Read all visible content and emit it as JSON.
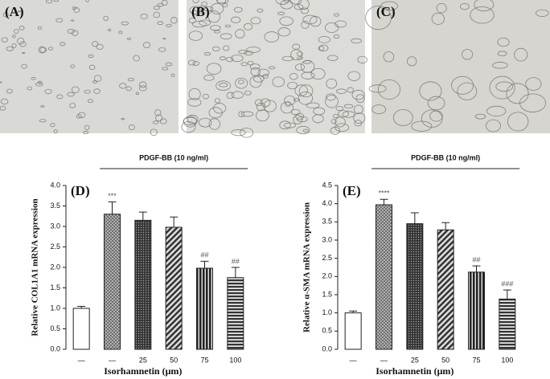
{
  "panels": [
    {
      "label": "(A)"
    },
    {
      "label": "(B)"
    },
    {
      "label": "(C)"
    }
  ],
  "chart_data": [
    {
      "type": "bar",
      "panel_label": "(D)",
      "ylabel": "Relative COL1A1 mRNA expression",
      "xlabel": "Isorhamnetin (μm)",
      "group_label": "PDGF-BB (10 ng/ml)",
      "categories": [
        "—",
        "—",
        "25",
        "50",
        "75",
        "100"
      ],
      "values": [
        1.0,
        3.3,
        3.15,
        2.98,
        1.98,
        1.75
      ],
      "errors": [
        0.05,
        0.3,
        0.2,
        0.25,
        0.17,
        0.25
      ],
      "annotations": [
        null,
        "***",
        null,
        null,
        "##",
        "##"
      ],
      "ylim": [
        0,
        4
      ],
      "yticks": [
        {
          "value": 0,
          "label": "0.0"
        },
        0.5,
        {
          "value": 1,
          "label": "1.0"
        },
        1.5,
        {
          "value": 2,
          "label": "2.0"
        },
        2.5,
        {
          "value": 3,
          "label": "3.0"
        },
        3.5,
        {
          "value": 4,
          "label": "4.0"
        }
      ]
    },
    {
      "type": "bar",
      "panel_label": "(E)",
      "ylabel": "Relative α-SMA mRNA expression",
      "xlabel": "Isorhamnetin (μm)",
      "group_label": "PDGF-BB (10 ng/ml)",
      "categories": [
        "—",
        "—",
        "25",
        "50",
        "75",
        "100"
      ],
      "values": [
        1.0,
        3.97,
        3.45,
        3.28,
        2.12,
        1.38
      ],
      "errors": [
        0.05,
        0.15,
        0.3,
        0.2,
        0.17,
        0.25
      ],
      "annotations": [
        null,
        "****",
        null,
        null,
        "##",
        "###"
      ],
      "ylim": [
        0,
        4.5
      ],
      "yticks": [
        {
          "value": 0,
          "label": "0.0"
        },
        0.5,
        {
          "value": 1,
          "label": "1.0"
        },
        1.5,
        {
          "value": 2,
          "label": "2.0"
        },
        2.5,
        {
          "value": 3,
          "label": "3.0"
        },
        3.5,
        {
          "value": 4,
          "label": "4.0"
        },
        4.5
      ]
    }
  ]
}
